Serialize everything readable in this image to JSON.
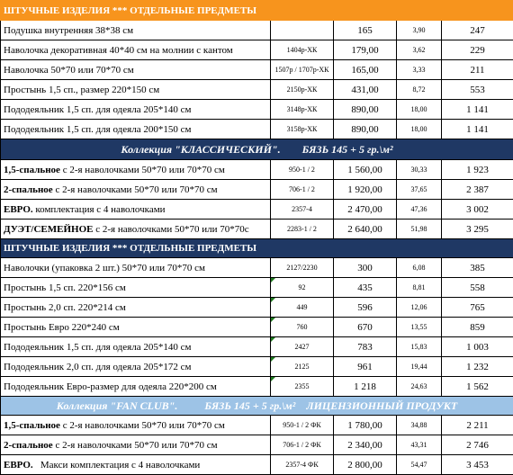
{
  "section1": {
    "header": "ШТУЧНЫЕ ИЗДЕЛИЯ *** ОТДЕЛЬНЫЕ ПРЕДМЕТЫ",
    "rows": [
      {
        "name": "Подушка внутренняя 38*38 см",
        "code": "",
        "price": "165",
        "small": "3,90",
        "last": "247"
      },
      {
        "name": "Наволочка декоративная 40*40 см на молнии с кантом",
        "code": "1404р-ХК",
        "price": "179,00",
        "small": "3,62",
        "last": "229"
      },
      {
        "name": "Наволочка 50*70 или 70*70 см",
        "code": "1507р / 1707р-ХК",
        "price": "165,00",
        "small": "3,33",
        "last": "211"
      },
      {
        "name": "Простынь 1,5 сп., размер 220*150 см",
        "code": "2150р-ХК",
        "price": "431,00",
        "small": "8,72",
        "last": "553"
      },
      {
        "name": "Пододеяльник 1,5 сп. для одеяла 205*140 см",
        "code": "3148р-ХК",
        "price": "890,00",
        "small": "18,00",
        "last": "1 141"
      },
      {
        "name": "Пододеяльник 1,5 сп. для одеяла 200*150 см",
        "code": "3158р-ХК",
        "price": "890,00",
        "small": "18,00",
        "last": "1 141"
      }
    ]
  },
  "section2": {
    "header": "Коллекция \"КЛАССИЧЕСКИЙ\".        БЯЗЬ 145 + 5 гр.\\м²",
    "rows": [
      {
        "bold": "1,5-спальное",
        "rest": " с 2-я наволочками 50*70 или 70*70 см",
        "code": "950-1 / 2",
        "price": "1 560,00",
        "small": "30,33",
        "last": "1 923"
      },
      {
        "bold": "2-спальное",
        "rest": " с 2-я наволочками 50*70 или 70*70 см",
        "code": "706-1 / 2",
        "price": "1 920,00",
        "small": "37,65",
        "last": "2 387"
      },
      {
        "bold": "ЕВРО.",
        "rest": " комплектация с 4 наволочками",
        "code": "2357-4",
        "price": "2 470,00",
        "small": "47,36",
        "last": "3 002"
      },
      {
        "bold": "ДУЭТ/СЕМЕЙНОЕ",
        "rest": " с 2-я наволочками 50*70 или 70*70с",
        "code": "2283-1 / 2",
        "price": "2 640,00",
        "small": "51,98",
        "last": "3 295"
      }
    ]
  },
  "section3": {
    "header": "ШТУЧНЫЕ ИЗДЕЛИЯ *** ОТДЕЛЬНЫЕ ПРЕДМЕТЫ",
    "rows": [
      {
        "name": "Наволочки (упаковка 2 шт.) 50*70 или 70*70 см",
        "code": "2127/2230",
        "price": "300",
        "small": "6,08",
        "last": "385"
      },
      {
        "name": "Простынь 1,5 сп. 220*156 см",
        "code": "92",
        "price": "435",
        "small": "8,81",
        "last": "558"
      },
      {
        "name": "Простынь 2,0 сп. 220*214 см",
        "code": "449",
        "price": "596",
        "small": "12,06",
        "last": "765"
      },
      {
        "name": "Простынь Евро 220*240 см",
        "code": "760",
        "price": "670",
        "small": "13,55",
        "last": "859"
      },
      {
        "name": "Пододеяльник 1,5 сп. для одеяла 205*140 см",
        "code": "2427",
        "price": "783",
        "small": "15,83",
        "last": "1 003"
      },
      {
        "name": "Пододеяльник 2,0 сп. для одеяла 205*172 см",
        "code": "2125",
        "price": "961",
        "small": "19,44",
        "last": "1 232"
      },
      {
        "name": "Пододеяльник Евро-размер для одеяла 220*200 см",
        "code": "2355",
        "price": "1 218",
        "small": "24,63",
        "last": "1 562"
      }
    ]
  },
  "section4": {
    "header": "Коллекция \"FAN CLUB\".          БЯЗЬ 145 + 5 гр.\\м²    ЛИЦЕНЗИОННЫЙ ПРОДУКТ",
    "rows": [
      {
        "bold": "1,5-спальное",
        "rest": " с 2-я наволочками 50*70 или 70*70 см",
        "code": "950-1 / 2 ФК",
        "price": "1 780,00",
        "small": "34,88",
        "last": "2 211"
      },
      {
        "bold": "2-спальное",
        "rest": " с 2-я наволочками 50*70 или 70*70 см",
        "code": "706-1 / 2 ФК",
        "price": "2 340,00",
        "small": "43,31",
        "last": "2 746"
      },
      {
        "bold": "ЕВРО.",
        "rest": "   Макси комплектация с 4 наволочками",
        "code": "2357-4 ФК",
        "price": "2 800,00",
        "small": "54,47",
        "last": "3 453"
      }
    ]
  },
  "colors": {
    "orange": "#f7941d",
    "navy": "#1f3864",
    "light_blue": "#9dc3e6",
    "marker_green": "#1f7a1f"
  }
}
